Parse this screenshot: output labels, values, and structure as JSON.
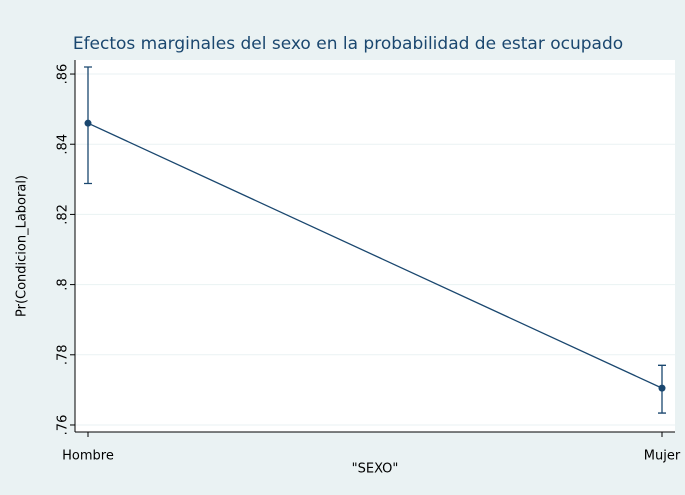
{
  "chart_data": {
    "type": "line",
    "title": "Efectos marginales del sexo en la probabilidad de estar ocupado",
    "x_label": "\"SEXO\"",
    "y_label": "Pr(Condicion_Laboral)",
    "categories": [
      "Hombre",
      "Mujer"
    ],
    "series": [
      {
        "color": "#1a476f",
        "values": [
          0.846,
          0.7705
        ],
        "ci_lower": [
          0.8288,
          0.7634
        ],
        "ci_upper": [
          0.862,
          0.777
        ]
      }
    ],
    "ylim": [
      0.758,
      0.864
    ],
    "yticks": [
      {
        "value": 0.76,
        "label": ".76"
      },
      {
        "value": 0.78,
        "label": ".78"
      },
      {
        "value": 0.8,
        "label": ".8"
      },
      {
        "value": 0.82,
        "label": ".82"
      },
      {
        "value": 0.84,
        "label": ".84"
      },
      {
        "value": 0.86,
        "label": ".86"
      }
    ],
    "grid": true
  }
}
